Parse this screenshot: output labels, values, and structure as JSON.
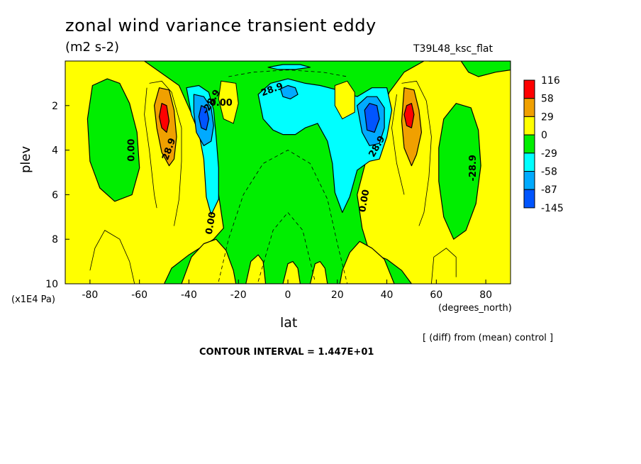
{
  "header": {
    "title": "zonal wind variance transient eddy",
    "units": "(m2 s-2)",
    "run": "T39L48_ksc_flat"
  },
  "footer": {
    "contour_interval": "CONTOUR INTERVAL = 1.447E+01",
    "diff_note": "[ (diff) from (mean) control ]"
  },
  "chart_data": {
    "type": "heatmap",
    "title": "zonal wind variance transient eddy",
    "subtitle": "(m2 s-2)",
    "xlabel": "lat",
    "xunits": "(degrees_north)",
    "ylabel": "plev",
    "yunits": "(x1E4 Pa)",
    "xlim": [
      -90,
      90
    ],
    "ylim": [
      10,
      0
    ],
    "x_ticks": [
      -80,
      -60,
      -40,
      -20,
      0,
      20,
      40,
      60,
      80
    ],
    "y_ticks": [
      2,
      4,
      6,
      8,
      10
    ],
    "legend": {
      "position": "right",
      "levels": [
        "116",
        "58",
        "29",
        "0",
        "-29",
        "-58",
        "-87",
        "-145"
      ],
      "colors": [
        "#ff0000",
        "#f0a000",
        "#ffff00",
        "#00ee00",
        "#00ffff",
        "#00aaff",
        "#0055ff"
      ]
    },
    "contour_labels": [
      "0.00",
      "28.9",
      "-28.9",
      "0.00",
      "0.00",
      "0.00",
      "28.9",
      "-28.9",
      "28.9"
    ],
    "features": [
      {
        "kind": "max",
        "lat": -50,
        "plev": 2.5,
        "value_range": "58 to 116"
      },
      {
        "kind": "max",
        "lat": 50,
        "plev": 2.5,
        "value_range": "58 to 116"
      },
      {
        "kind": "min",
        "lat": -33,
        "plev": 2.5,
        "value_range": "-87 to -58"
      },
      {
        "kind": "min",
        "lat": 33,
        "plev": 2.5,
        "value_range": "-87 to -58"
      }
    ]
  }
}
